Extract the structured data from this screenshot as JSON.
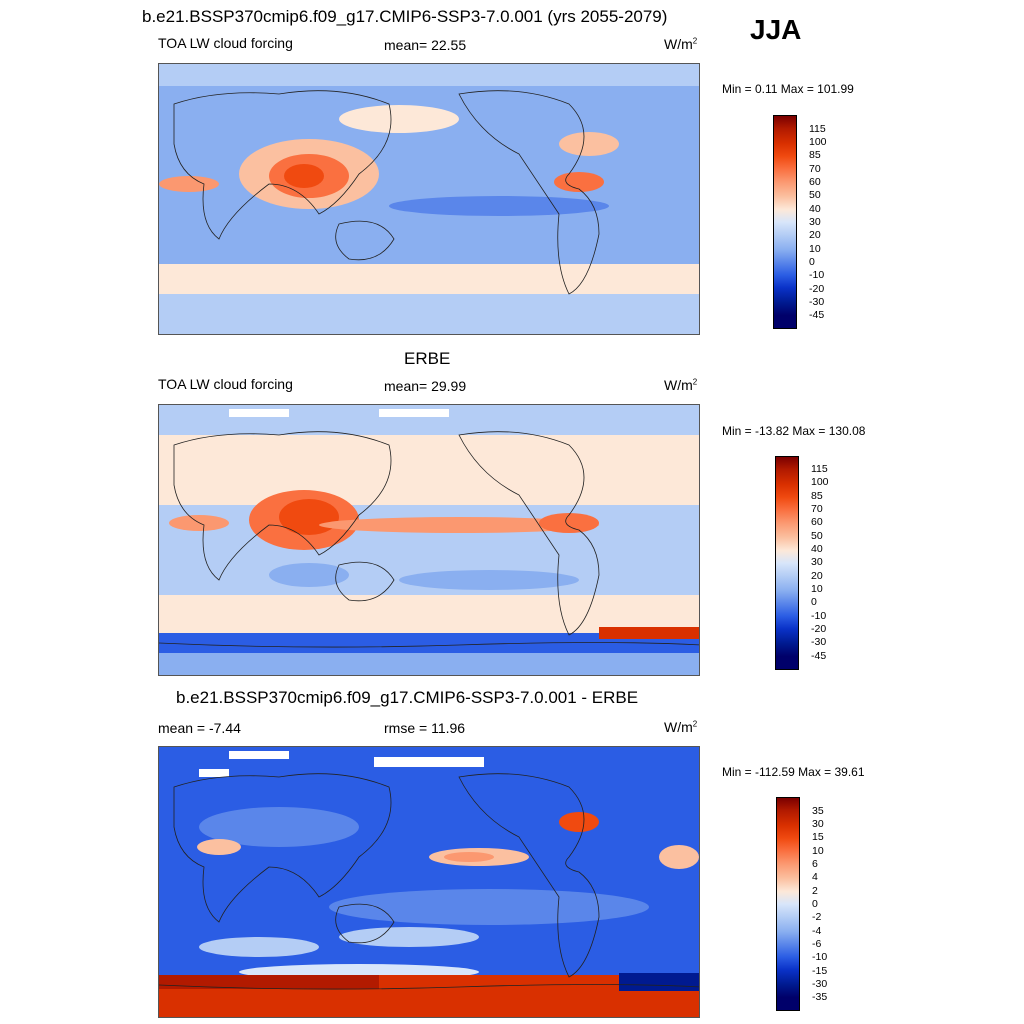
{
  "season": "JJA",
  "units_label": "W/m",
  "units_sup": "2",
  "panels": [
    {
      "id": "model",
      "title": "b.e21.BSSP370cmip6.f09_g17.CMIP6-SSP3-7.0.001 (yrs 2055-2079)",
      "left_label": "TOA LW cloud forcing",
      "mid_label": "mean=  22.55",
      "minmax": "Min =   0.11 Max = 101.99",
      "colorbar_labels": [
        "115",
        "100",
        "85",
        "70",
        "60",
        "50",
        "40",
        "30",
        "20",
        "10",
        "0",
        "-10",
        "-20",
        "-30",
        "-45"
      ]
    },
    {
      "id": "obs",
      "title": "ERBE",
      "left_label": "TOA LW cloud forcing",
      "mid_label": "mean=  29.99",
      "minmax": "Min = -13.82 Max = 130.08",
      "colorbar_labels": [
        "115",
        "100",
        "85",
        "70",
        "60",
        "50",
        "40",
        "30",
        "20",
        "10",
        "0",
        "-10",
        "-20",
        "-30",
        "-45"
      ]
    },
    {
      "id": "diff",
      "title": "b.e21.BSSP370cmip6.f09_g17.CMIP6-SSP3-7.0.001 - ERBE",
      "left_label": "mean =  -7.44",
      "mid_label": "rmse =  11.96",
      "minmax": "Min = -112.59 Max =  39.61",
      "colorbar_labels": [
        "35",
        "30",
        "15",
        "10",
        "6",
        "4",
        "2",
        "0",
        "-2",
        "-4",
        "-6",
        "-10",
        "-15",
        "-30",
        "-35"
      ]
    }
  ],
  "colors": {
    "scale": [
      "#7a0000",
      "#b21a00",
      "#d93000",
      "#f04a10",
      "#fa7040",
      "#fb9870",
      "#fbc0a0",
      "#fde8d8",
      "#d8e6fa",
      "#b4cdf5",
      "#8aaff0",
      "#5a86ea",
      "#2b5de4",
      "#0a32c8",
      "#001a90",
      "#00006a"
    ]
  }
}
